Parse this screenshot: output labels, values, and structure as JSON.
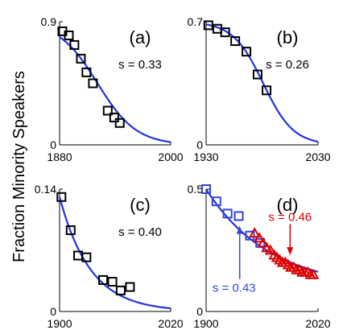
{
  "chart_data": {
    "type": "scatter",
    "ylabel": "Fraction Minority Speakers",
    "colors": {
      "data": "#000000",
      "fit": "#2233dd",
      "series_d2": "#dd0000",
      "blue_marker": "#3344dd"
    },
    "panels": [
      {
        "label": "(a)",
        "xlim": [
          1880,
          2000
        ],
        "ylim": [
          0,
          0.9
        ],
        "xticks": [
          "1880",
          "2000"
        ],
        "yticks": [
          "0",
          "0.9"
        ],
        "annotation": "s = 0.33",
        "points": [
          [
            1883,
            0.83
          ],
          [
            1890,
            0.8
          ],
          [
            1896,
            0.73
          ],
          [
            1903,
            0.63
          ],
          [
            1909,
            0.53
          ],
          [
            1916,
            0.45
          ],
          [
            1932,
            0.25
          ],
          [
            1939,
            0.2
          ],
          [
            1945,
            0.16
          ]
        ],
        "fit": {
          "center": 1921,
          "width": 21,
          "max": 0.9
        }
      },
      {
        "label": "(b)",
        "xlim": [
          1930,
          2030
        ],
        "ylim": [
          0,
          0.7
        ],
        "xticks": [
          "1930",
          "2030"
        ],
        "yticks": [
          "0",
          "0.7"
        ],
        "annotation": "s = 0.26",
        "points": [
          [
            1932,
            0.68
          ],
          [
            1940,
            0.66
          ],
          [
            1947,
            0.64
          ],
          [
            1956,
            0.59
          ],
          [
            1966,
            0.53
          ],
          [
            1976,
            0.4
          ],
          [
            1984,
            0.31
          ]
        ],
        "fit": {
          "center": 1981,
          "width": 13.5,
          "max": 0.7
        }
      },
      {
        "label": "(c)",
        "xlim": [
          1900,
          2020
        ],
        "ylim": [
          0,
          0.14
        ],
        "xticks": [
          "1900",
          "2020"
        ],
        "yticks": [
          "0",
          "0.14"
        ],
        "annotation": "s = 0.40",
        "points": [
          [
            1902,
            0.131
          ],
          [
            1912,
            0.093
          ],
          [
            1920,
            0.064
          ],
          [
            1929,
            0.062
          ],
          [
            1947,
            0.036
          ],
          [
            1957,
            0.034
          ],
          [
            1966,
            0.024
          ],
          [
            1976,
            0.028
          ]
        ],
        "fit": {
          "x0": 1900,
          "y0": 0.131,
          "k": 0.03,
          "min": 0.003
        }
      },
      {
        "label": "(d)",
        "xlim": [
          1900,
          2020
        ],
        "ylim": [
          0,
          0.5
        ],
        "xticks": [
          "1900",
          "2020"
        ],
        "yticks": [
          "0",
          "0.5"
        ],
        "series": [
          {
            "marker": "square",
            "color": "#3344dd",
            "points": [
              [
                1900,
                0.5
              ],
              [
                1911,
                0.45
              ],
              [
                1923,
                0.4
              ],
              [
                1935,
                0.39
              ],
              [
                1947,
                0.31
              ],
              [
                1958,
                0.28
              ]
            ]
          },
          {
            "marker": "triangle",
            "color": "#dd0000",
            "points": [
              [
                1952,
                0.32
              ],
              [
                1957,
                0.3
              ],
              [
                1961,
                0.28
              ],
              [
                1965,
                0.26
              ],
              [
                1969,
                0.25
              ],
              [
                1973,
                0.23
              ],
              [
                1976,
                0.22
              ],
              [
                1979,
                0.21
              ],
              [
                1982,
                0.2
              ],
              [
                1985,
                0.2
              ],
              [
                1988,
                0.19
              ],
              [
                1991,
                0.18
              ],
              [
                1994,
                0.18
              ],
              [
                1997,
                0.17
              ],
              [
                2000,
                0.17
              ],
              [
                2003,
                0.16
              ],
              [
                2006,
                0.16
              ],
              [
                2009,
                0.16
              ],
              [
                2012,
                0.15
              ],
              [
                2015,
                0.15
              ]
            ]
          }
        ],
        "fit": {
          "x0": 1900,
          "y0": 0.5,
          "k": 0.0145,
          "floor": 0.09
        },
        "annotations": [
          {
            "text": "s = 0.46",
            "color": "#dd0000",
            "data_x": 1990,
            "data_y": 0.37,
            "arrow_to": [
              1990,
              0.23
            ]
          },
          {
            "text": "s = 0.43",
            "color": "#3344dd",
            "data_x": 1930,
            "data_y": 0.08,
            "arrow_to": [
              1936,
              0.35
            ]
          }
        ]
      }
    ]
  }
}
